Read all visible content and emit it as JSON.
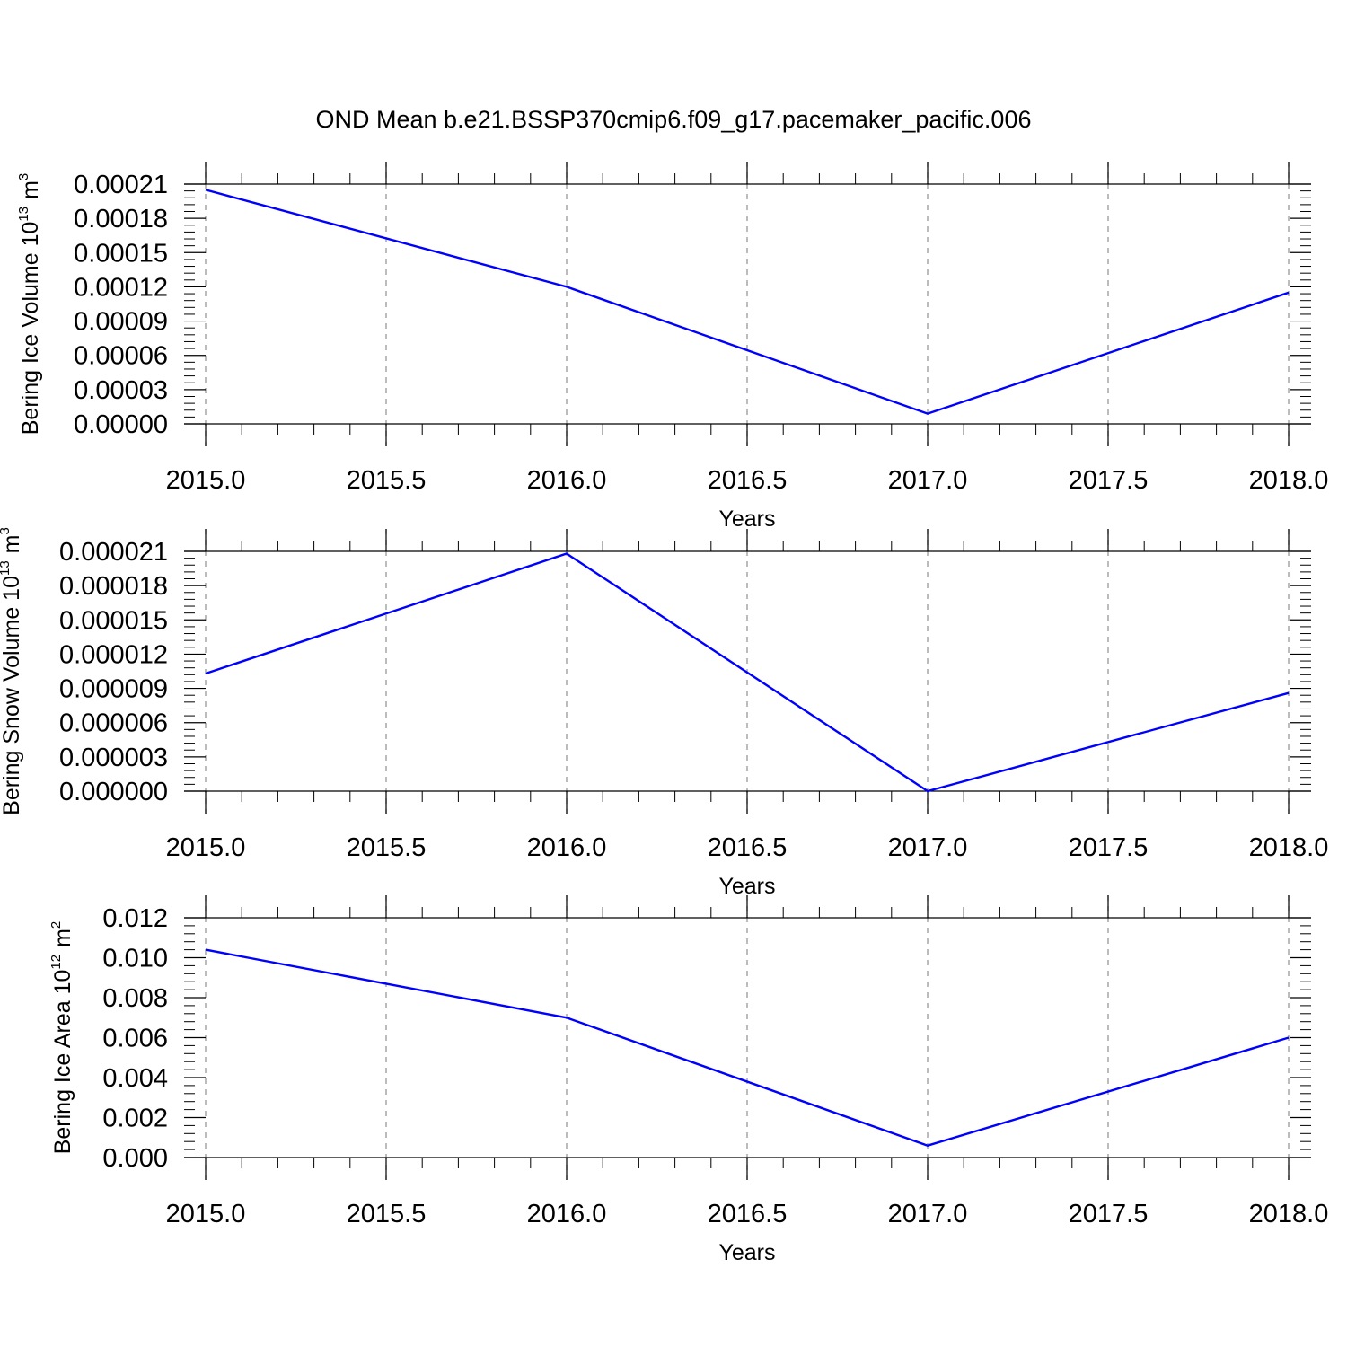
{
  "title": "OND Mean b.e21.BSSP370cmip6.f09_g17.pacemaker_pacific.006",
  "colors": {
    "line": "#0000ff",
    "axis": "#000000",
    "grid": "#a0a0a0",
    "background": "#ffffff"
  },
  "chart_data": [
    {
      "type": "line",
      "title": "OND Mean b.e21.BSSP370cmip6.f09_g17.pacemaker_pacific.006",
      "xlabel": "Years",
      "ylabel": {
        "text": "Bering Ice Volume 10",
        "exp": "13",
        "unit": "m",
        "unit_exp": "3"
      },
      "xlim": [
        2015.0,
        2018.0
      ],
      "ylim": [
        0.0,
        0.00021
      ],
      "x_ticks": [
        "2015.0",
        "2015.5",
        "2016.0",
        "2016.5",
        "2017.0",
        "2017.5",
        "2018.0"
      ],
      "y_ticks": [
        "0.00000",
        "0.00003",
        "0.00006",
        "0.00009",
        "0.00012",
        "0.00015",
        "0.00018",
        "0.00021"
      ],
      "grid": "vertical dashed",
      "series": [
        {
          "x": [
            2015,
            2016,
            2017,
            2018
          ],
          "y": [
            0.000205,
            0.00012,
            9e-06,
            0.000115
          ]
        }
      ]
    },
    {
      "type": "line",
      "xlabel": "Years",
      "ylabel": {
        "text": "Bering Snow Volume 10",
        "exp": "13",
        "unit": "m",
        "unit_exp": "3"
      },
      "xlim": [
        2015.0,
        2018.0
      ],
      "ylim": [
        0.0,
        2.1e-05
      ],
      "x_ticks": [
        "2015.0",
        "2015.5",
        "2016.0",
        "2016.5",
        "2017.0",
        "2017.5",
        "2018.0"
      ],
      "y_ticks": [
        "0.000000",
        "0.000003",
        "0.000006",
        "0.000009",
        "0.000012",
        "0.000015",
        "0.000018",
        "0.000021"
      ],
      "grid": "vertical dashed",
      "series": [
        {
          "x": [
            2015,
            2016,
            2017,
            2018
          ],
          "y": [
            1.03e-05,
            2.08e-05,
            0.0,
            8.6e-06
          ]
        }
      ]
    },
    {
      "type": "line",
      "xlabel": "Years",
      "ylabel": {
        "text": "Bering Ice Area 10",
        "exp": "12",
        "unit": "m",
        "unit_exp": "2"
      },
      "xlim": [
        2015.0,
        2018.0
      ],
      "ylim": [
        0.0,
        0.012
      ],
      "x_ticks": [
        "2015.0",
        "2015.5",
        "2016.0",
        "2016.5",
        "2017.0",
        "2017.5",
        "2018.0"
      ],
      "y_ticks": [
        "0.000",
        "0.002",
        "0.004",
        "0.006",
        "0.008",
        "0.010",
        "0.012"
      ],
      "grid": "vertical dashed",
      "series": [
        {
          "x": [
            2015,
            2016,
            2017,
            2018
          ],
          "y": [
            0.0104,
            0.007,
            0.0006,
            0.006
          ]
        }
      ]
    }
  ]
}
